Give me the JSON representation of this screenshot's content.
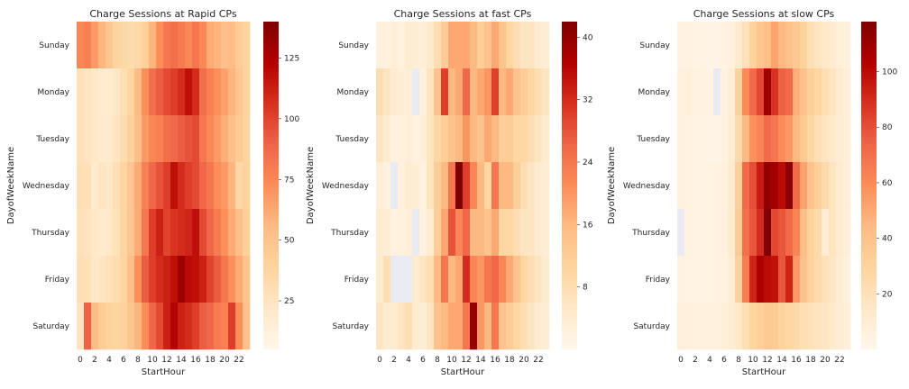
{
  "chart_data": [
    {
      "type": "heatmap",
      "title": "Charge Sessions at Rapid CPs",
      "xlabel": "StartHour",
      "ylabel": "DayofWeekName",
      "x_ticks": [
        "0",
        "2",
        "4",
        "6",
        "8",
        "10",
        "12",
        "14",
        "16",
        "18",
        "20",
        "22"
      ],
      "rows": [
        "Sunday",
        "Monday",
        "Tuesday",
        "Wednesday",
        "Thursday",
        "Friday",
        "Saturday"
      ],
      "columns": [
        0,
        1,
        2,
        3,
        4,
        5,
        6,
        7,
        8,
        9,
        10,
        11,
        12,
        13,
        14,
        15,
        16,
        17,
        18,
        19,
        20,
        21,
        22,
        23
      ],
      "colorbar": {
        "ticks": [
          25,
          50,
          75,
          100,
          125
        ],
        "vmin": 5,
        "vmax": 140,
        "colormap": "OrRd"
      },
      "values": [
        [
          75,
          78,
          68,
          58,
          48,
          38,
          35,
          33,
          35,
          42,
          58,
          72,
          82,
          85,
          80,
          75,
          82,
          75,
          62,
          58,
          52,
          55,
          45,
          40
        ],
        [
          28,
          25,
          22,
          20,
          18,
          22,
          30,
          38,
          55,
          72,
          85,
          92,
          98,
          102,
          108,
          118,
          108,
          85,
          78,
          72,
          65,
          58,
          48,
          40
        ],
        [
          28,
          25,
          22,
          20,
          20,
          25,
          32,
          40,
          52,
          68,
          75,
          78,
          85,
          88,
          92,
          95,
          98,
          82,
          75,
          68,
          60,
          52,
          45,
          38
        ],
        [
          30,
          28,
          20,
          25,
          22,
          30,
          38,
          48,
          62,
          78,
          88,
          95,
          102,
          118,
          108,
          102,
          98,
          88,
          82,
          72,
          68,
          58,
          35,
          40
        ],
        [
          28,
          26,
          22,
          20,
          22,
          28,
          38,
          48,
          62,
          82,
          102,
          112,
          100,
          105,
          108,
          110,
          118,
          98,
          88,
          80,
          72,
          62,
          52,
          42
        ],
        [
          30,
          28,
          22,
          25,
          28,
          32,
          38,
          52,
          72,
          92,
          102,
          108,
          112,
          118,
          130,
          120,
          118,
          112,
          100,
          92,
          82,
          72,
          62,
          50
        ],
        [
          25,
          90,
          55,
          45,
          40,
          38,
          40,
          48,
          58,
          72,
          88,
          98,
          112,
          122,
          112,
          108,
          102,
          92,
          88,
          80,
          78,
          102,
          72,
          52
        ]
      ]
    },
    {
      "type": "heatmap",
      "title": "Charge Sessions at fast CPs",
      "xlabel": "StartHour",
      "ylabel": "DayofWeekName",
      "x_ticks": [
        "0",
        "2",
        "4",
        "6",
        "8",
        "10",
        "12",
        "14",
        "16",
        "18",
        "20",
        "22"
      ],
      "rows": [
        "Sunday",
        "Monday",
        "Tuesday",
        "Wednesday",
        "Thursday",
        "Friday",
        "Saturday"
      ],
      "columns": [
        0,
        1,
        2,
        3,
        4,
        5,
        6,
        7,
        8,
        9,
        10,
        11,
        12,
        13,
        14,
        15,
        16,
        17,
        18,
        19,
        20,
        21,
        22,
        23
      ],
      "colorbar": {
        "ticks": [
          8,
          16,
          24,
          32,
          40
        ],
        "vmin": 0,
        "vmax": 42,
        "colormap": "OrRd"
      },
      "values": [
        [
          2,
          2,
          3,
          2,
          4,
          3,
          3,
          5,
          8,
          12,
          18,
          18,
          18,
          16,
          12,
          14,
          18,
          14,
          10,
          8,
          6,
          6,
          4,
          3
        ],
        [
          8,
          6,
          4,
          3,
          3,
          0,
          2,
          6,
          14,
          30,
          16,
          18,
          26,
          16,
          18,
          20,
          30,
          16,
          18,
          14,
          12,
          10,
          8,
          6
        ],
        [
          6,
          4,
          2,
          2,
          3,
          2,
          3,
          6,
          10,
          12,
          14,
          16,
          20,
          16,
          14,
          18,
          16,
          12,
          12,
          10,
          10,
          8,
          6,
          4
        ],
        [
          3,
          2,
          0,
          2,
          4,
          3,
          2,
          6,
          12,
          16,
          24,
          42,
          30,
          22,
          16,
          10,
          24,
          16,
          16,
          12,
          8,
          6,
          4,
          3
        ],
        [
          4,
          3,
          2,
          2,
          3,
          0,
          2,
          4,
          12,
          18,
          28,
          22,
          26,
          16,
          16,
          14,
          18,
          10,
          10,
          8,
          6,
          6,
          4,
          3
        ],
        [
          4,
          8,
          0,
          0,
          0,
          4,
          6,
          8,
          16,
          24,
          16,
          18,
          32,
          22,
          20,
          24,
          26,
          22,
          18,
          14,
          10,
          8,
          6,
          4
        ],
        [
          6,
          4,
          4,
          6,
          8,
          4,
          3,
          6,
          14,
          16,
          18,
          18,
          24,
          40,
          20,
          16,
          24,
          14,
          12,
          10,
          8,
          6,
          4,
          3
        ]
      ]
    },
    {
      "type": "heatmap",
      "title": "Charge Sessions at slow CPs",
      "xlabel": "StartHour",
      "ylabel": "DayofWeekName",
      "x_ticks": [
        "0",
        "2",
        "4",
        "6",
        "8",
        "10",
        "12",
        "14",
        "16",
        "18",
        "20",
        "22"
      ],
      "rows": [
        "Sunday",
        "Monday",
        "Tuesday",
        "Wednesday",
        "Thursday",
        "Friday",
        "Saturday"
      ],
      "columns": [
        0,
        1,
        2,
        3,
        4,
        5,
        6,
        7,
        8,
        9,
        10,
        11,
        12,
        13,
        14,
        15,
        16,
        17,
        18,
        19,
        20,
        21,
        22,
        23
      ],
      "colorbar": {
        "ticks": [
          20,
          40,
          60,
          80,
          100
        ],
        "vmin": 0,
        "vmax": 118,
        "colormap": "OrRd"
      },
      "values": [
        [
          5,
          5,
          4,
          4,
          3,
          3,
          4,
          6,
          12,
          20,
          30,
          38,
          42,
          52,
          45,
          40,
          36,
          30,
          22,
          18,
          15,
          12,
          8,
          6
        ],
        [
          6,
          8,
          5,
          5,
          3,
          0,
          5,
          10,
          30,
          60,
          72,
          82,
          108,
          88,
          75,
          72,
          48,
          40,
          32,
          28,
          22,
          18,
          12,
          8
        ],
        [
          6,
          5,
          4,
          4,
          3,
          3,
          5,
          10,
          25,
          45,
          58,
          62,
          72,
          68,
          60,
          55,
          45,
          36,
          28,
          22,
          18,
          14,
          10,
          8
        ],
        [
          6,
          5,
          4,
          4,
          4,
          4,
          6,
          12,
          32,
          72,
          80,
          95,
          112,
          108,
          100,
          115,
          72,
          52,
          40,
          32,
          25,
          18,
          12,
          8
        ],
        [
          0,
          5,
          4,
          4,
          4,
          4,
          6,
          12,
          35,
          70,
          78,
          90,
          118,
          82,
          78,
          72,
          62,
          42,
          30,
          25,
          10,
          18,
          12,
          8
        ],
        [
          5,
          4,
          4,
          4,
          4,
          4,
          6,
          10,
          30,
          65,
          92,
          105,
          100,
          98,
          78,
          92,
          55,
          40,
          30,
          25,
          20,
          16,
          10,
          6
        ],
        [
          8,
          7,
          6,
          6,
          6,
          6,
          8,
          10,
          15,
          22,
          28,
          32,
          36,
          34,
          30,
          28,
          26,
          22,
          20,
          18,
          16,
          14,
          10,
          8
        ]
      ]
    }
  ]
}
